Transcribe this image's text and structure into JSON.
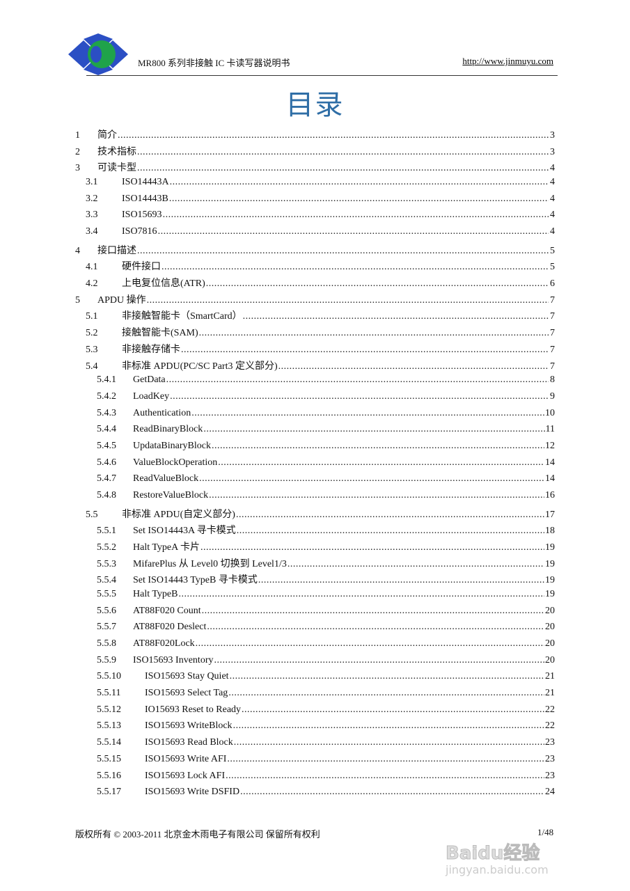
{
  "header": {
    "title": "MR800 系列非接触 IC 卡读写器说明书",
    "url": "http://www.jinmuyu.com"
  },
  "doc_title": "目录",
  "toc": [
    {
      "level": 1,
      "num": "1",
      "title": "简介",
      "page": "3"
    },
    {
      "level": 1,
      "num": "2",
      "title": "技术指标",
      "page": "3"
    },
    {
      "level": 1,
      "num": "3",
      "title": "可读卡型",
      "page": "4"
    },
    {
      "level": 2,
      "num": "3.1",
      "title": "ISO14443A",
      "page": "4"
    },
    {
      "level": 2,
      "num": "3.2",
      "title": "ISO14443B",
      "page": "4"
    },
    {
      "level": 2,
      "num": "3.3",
      "title": "ISO15693",
      "page": "4"
    },
    {
      "level": 2,
      "num": "3.4",
      "title": "ISO7816",
      "page": "4"
    },
    {
      "level": 1,
      "num": "4",
      "title": "接口描述",
      "page": "5"
    },
    {
      "level": 2,
      "num": "4.1",
      "title": "硬件接口",
      "page": "5"
    },
    {
      "level": 2,
      "num": "4.2",
      "title": "上电复位信息(ATR)",
      "page": "6"
    },
    {
      "level": 1,
      "num": "5",
      "title": "APDU 操作",
      "page": "7"
    },
    {
      "level": 2,
      "num": "5.1",
      "title": "非接触智能卡（SmartCard）",
      "page": "7"
    },
    {
      "level": 2,
      "num": "5.2",
      "title": "接触智能卡(SAM)",
      "page": "7"
    },
    {
      "level": 2,
      "num": "5.3",
      "title": "非接触存储卡",
      "page": "7"
    },
    {
      "level": 2,
      "num": "5.4",
      "title": "非标准 APDU(PC/SC Part3 定义部分)",
      "page": "7"
    },
    {
      "level": 3,
      "num": "5.4.1",
      "title": "GetData",
      "page": "8"
    },
    {
      "level": 3,
      "num": "5.4.2",
      "title": "LoadKey",
      "page": "9"
    },
    {
      "level": 3,
      "num": "5.4.3",
      "title": "Authentication",
      "page": "10"
    },
    {
      "level": 3,
      "num": "5.4.4",
      "title": "ReadBinaryBlock",
      "page": "11"
    },
    {
      "level": 3,
      "num": "5.4.5",
      "title": "UpdataBinaryBlock",
      "page": "12"
    },
    {
      "level": 3,
      "num": "5.4.6",
      "title": "ValueBlockOperation",
      "page": "14"
    },
    {
      "level": 3,
      "num": "5.4.7",
      "title": "ReadValueBlock",
      "page": "14"
    },
    {
      "level": 3,
      "num": "5.4.8",
      "title": "RestoreValueBlock",
      "page": "16"
    },
    {
      "level": 2,
      "num": "5.5",
      "title": "非标准 APDU(自定义部分)",
      "page": "17"
    },
    {
      "level": 3,
      "num": "5.5.1",
      "title": "Set ISO14443A  寻卡模式",
      "page": "18"
    },
    {
      "level": 3,
      "num": "5.5.2",
      "title": "Halt TypeA 卡片",
      "page": "19"
    },
    {
      "level": 3,
      "num": "5.5.3",
      "title": "MifarePlus  从 Level0 切换到 Level1/3",
      "page": "19"
    },
    {
      "level": 3,
      "num": "5.5.4",
      "title": "Set ISO14443 TypeB  寻卡模式",
      "page": "19"
    },
    {
      "level": 3,
      "num": "5.5.5",
      "title": "Halt TypeB",
      "page": "19"
    },
    {
      "level": 3,
      "num": "5.5.6",
      "title": "AT88F020 Count",
      "page": "20"
    },
    {
      "level": 3,
      "num": "5.5.7",
      "title": "AT88F020 Deslect",
      "page": "20"
    },
    {
      "level": 3,
      "num": "5.5.8",
      "title": "AT88F020Lock",
      "page": "20"
    },
    {
      "level": 3,
      "num": "5.5.9",
      "title": "ISO15693 Inventory",
      "page": "20"
    },
    {
      "level": 4,
      "num": "5.5.10",
      "title": "ISO15693 Stay Quiet",
      "page": "21"
    },
    {
      "level": 4,
      "num": "5.5.11",
      "title": "ISO15693 Select Tag",
      "page": "21"
    },
    {
      "level": 4,
      "num": "5.5.12",
      "title": "IO15693 Reset to Ready",
      "page": "22"
    },
    {
      "level": 4,
      "num": "5.5.13",
      "title": "ISO15693 WriteBlock",
      "page": "22"
    },
    {
      "level": 4,
      "num": "5.5.14",
      "title": "ISO15693 Read Block",
      "page": "23"
    },
    {
      "level": 4,
      "num": "5.5.15",
      "title": "ISO15693 Write AFI",
      "page": "23"
    },
    {
      "level": 4,
      "num": "5.5.16",
      "title": "ISO15693 Lock AFI",
      "page": "23"
    },
    {
      "level": 4,
      "num": "5.5.17",
      "title": "ISO15693 Write DSFID",
      "page": "24"
    }
  ],
  "footer": {
    "copyright": "版权所有  ©  2003-2011 北京金木雨电子有限公司  保留所有权利",
    "page": "1/48"
  },
  "watermark": {
    "brand": "Baidu经验",
    "domain": "jingyan.baidu.com"
  },
  "colors": {
    "title": "#2f6ea6",
    "logo_blue": "#2b4fc4",
    "logo_green": "#1fa34a"
  }
}
